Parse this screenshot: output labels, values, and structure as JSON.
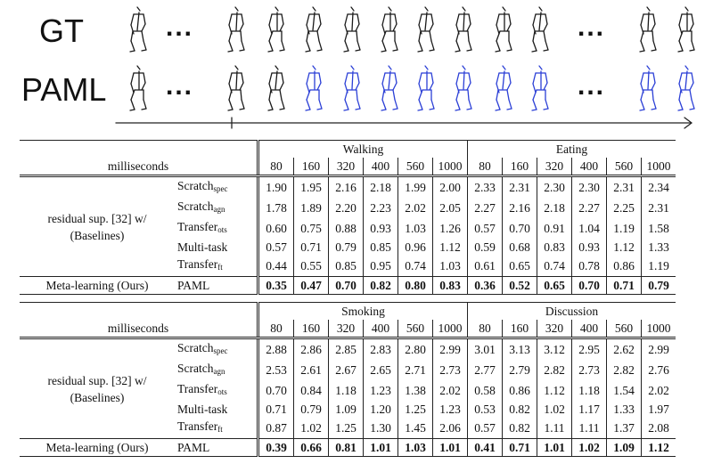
{
  "figure": {
    "row_labels": [
      "GT",
      "PAML"
    ],
    "ellipsis": "..."
  },
  "tables": [
    {
      "ms_label": "milliseconds",
      "actions": [
        "Walking",
        "Eating"
      ],
      "horizons": [
        "80",
        "160",
        "320",
        "400",
        "560",
        "1000",
        "80",
        "160",
        "320",
        "400",
        "560",
        "1000"
      ],
      "baseline_group_label": "residual sup. [32] w/",
      "baseline_group_sub": "(Baselines)",
      "rows": [
        {
          "method": "Scratch",
          "sub": "spec",
          "values": [
            "1.90",
            "1.95",
            "2.16",
            "2.18",
            "1.99",
            "2.00",
            "2.33",
            "2.31",
            "2.30",
            "2.30",
            "2.31",
            "2.34"
          ]
        },
        {
          "method": "Scratch",
          "sub": "agn",
          "values": [
            "1.78",
            "1.89",
            "2.20",
            "2.23",
            "2.02",
            "2.05",
            "2.27",
            "2.16",
            "2.18",
            "2.27",
            "2.25",
            "2.31"
          ]
        },
        {
          "method": "Transfer",
          "sub": "ots",
          "values": [
            "0.60",
            "0.75",
            "0.88",
            "0.93",
            "1.03",
            "1.26",
            "0.57",
            "0.70",
            "0.91",
            "1.04",
            "1.19",
            "1.58"
          ]
        },
        {
          "method": "Multi-task",
          "sub": "",
          "values": [
            "0.57",
            "0.71",
            "0.79",
            "0.85",
            "0.96",
            "1.12",
            "0.59",
            "0.68",
            "0.83",
            "0.93",
            "1.12",
            "1.33"
          ]
        },
        {
          "method": "Transfer",
          "sub": "ft",
          "values": [
            "0.44",
            "0.55",
            "0.85",
            "0.95",
            "0.74",
            "1.03",
            "0.61",
            "0.65",
            "0.74",
            "0.78",
            "0.86",
            "1.19"
          ]
        }
      ],
      "ours": {
        "label": "Meta-learning (Ours)",
        "method": "PAML",
        "values": [
          "0.35",
          "0.47",
          "0.70",
          "0.82",
          "0.80",
          "0.83",
          "0.36",
          "0.52",
          "0.65",
          "0.70",
          "0.71",
          "0.79"
        ]
      }
    },
    {
      "ms_label": "milliseconds",
      "actions": [
        "Smoking",
        "Discussion"
      ],
      "horizons": [
        "80",
        "160",
        "320",
        "400",
        "560",
        "1000",
        "80",
        "160",
        "320",
        "400",
        "560",
        "1000"
      ],
      "baseline_group_label": "residual sup. [32] w/",
      "baseline_group_sub": "(Baselines)",
      "rows": [
        {
          "method": "Scratch",
          "sub": "spec",
          "values": [
            "2.88",
            "2.86",
            "2.85",
            "2.83",
            "2.80",
            "2.99",
            "3.01",
            "3.13",
            "3.12",
            "2.95",
            "2.62",
            "2.99"
          ]
        },
        {
          "method": "Scratch",
          "sub": "agn",
          "values": [
            "2.53",
            "2.61",
            "2.67",
            "2.65",
            "2.71",
            "2.73",
            "2.77",
            "2.79",
            "2.82",
            "2.73",
            "2.82",
            "2.76"
          ]
        },
        {
          "method": "Transfer",
          "sub": "ots",
          "values": [
            "0.70",
            "0.84",
            "1.18",
            "1.23",
            "1.38",
            "2.02",
            "0.58",
            "0.86",
            "1.12",
            "1.18",
            "1.54",
            "2.02"
          ]
        },
        {
          "method": "Multi-task",
          "sub": "",
          "values": [
            "0.71",
            "0.79",
            "1.09",
            "1.20",
            "1.25",
            "1.23",
            "0.53",
            "0.82",
            "1.02",
            "1.17",
            "1.33",
            "1.97"
          ]
        },
        {
          "method": "Transfer",
          "sub": "ft",
          "values": [
            "0.87",
            "1.02",
            "1.25",
            "1.30",
            "1.45",
            "2.06",
            "0.57",
            "0.82",
            "1.11",
            "1.11",
            "1.37",
            "2.08"
          ]
        }
      ],
      "ours": {
        "label": "Meta-learning (Ours)",
        "method": "PAML",
        "values": [
          "0.39",
          "0.66",
          "0.81",
          "1.01",
          "1.03",
          "1.01",
          "0.41",
          "0.71",
          "1.01",
          "1.02",
          "1.09",
          "1.12"
        ]
      }
    }
  ],
  "colors": {
    "gt_stroke": "#1a1a1a",
    "pred_stroke": "#2b3fd6",
    "text": "#111111"
  }
}
